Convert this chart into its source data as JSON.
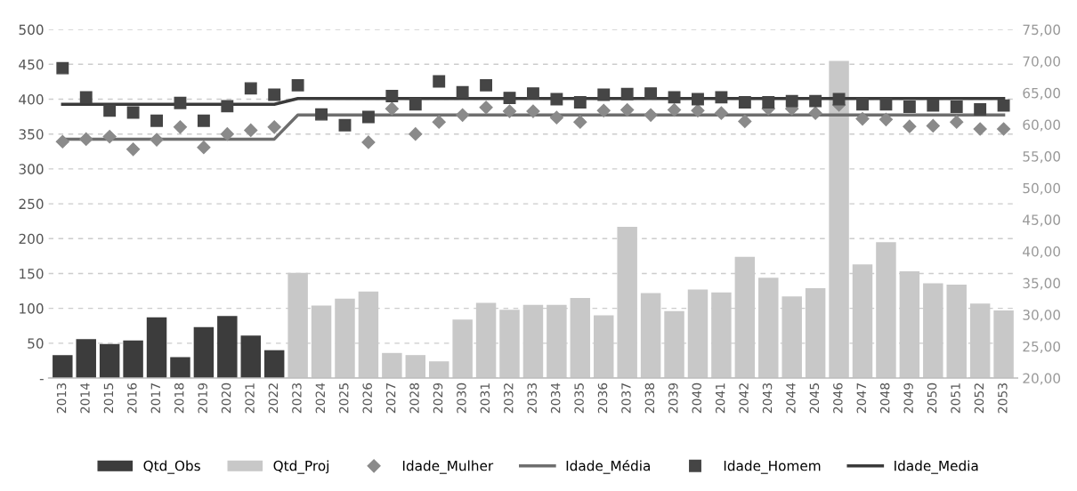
{
  "chart_data": {
    "type": "bar",
    "categories": [
      "2013",
      "2014",
      "2015",
      "2016",
      "2017",
      "2018",
      "2019",
      "2020",
      "2021",
      "2022",
      "2023",
      "2024",
      "2025",
      "2026",
      "2027",
      "2028",
      "2029",
      "2030",
      "2031",
      "2032",
      "2033",
      "2034",
      "2035",
      "2036",
      "2037",
      "2038",
      "2039",
      "2040",
      "2041",
      "2042",
      "2043",
      "2044",
      "2045",
      "2046",
      "2047",
      "2048",
      "2049",
      "2050",
      "2051",
      "2052",
      "2053"
    ],
    "series": [
      {
        "name": "Qtd_Obs",
        "color": "#3c3c3c",
        "values": [
          33,
          56,
          49,
          54,
          87,
          30,
          73,
          89,
          61,
          40,
          null,
          null,
          null,
          null,
          null,
          null,
          null,
          null,
          null,
          null,
          null,
          null,
          null,
          null,
          null,
          null,
          null,
          null,
          null,
          null,
          null,
          null,
          null,
          null,
          null,
          null,
          null,
          null,
          null,
          null,
          null
        ]
      },
      {
        "name": "Qtd_Proj",
        "color": "#c8c8c8",
        "values": [
          null,
          null,
          null,
          null,
          null,
          null,
          null,
          null,
          null,
          null,
          151,
          104,
          114,
          124,
          36,
          33,
          24,
          84,
          108,
          98,
          105,
          105,
          115,
          90,
          217,
          122,
          96,
          127,
          123,
          174,
          144,
          117,
          129,
          455,
          163,
          195,
          153,
          136,
          134,
          107,
          97
        ]
      },
      {
        "name": "Idade_Mulher",
        "type": "scatter",
        "axis": "y2",
        "marker": "diamond",
        "color": "#8a8a8a",
        "values": [
          57.3,
          57.7,
          58.1,
          56.1,
          57.6,
          59.6,
          56.4,
          58.5,
          59.1,
          59.6,
          null,
          null,
          null,
          57.2,
          62.5,
          58.5,
          60.4,
          61.5,
          62.7,
          62.1,
          62.1,
          61.1,
          60.4,
          62.2,
          62.3,
          61.5,
          62.3,
          62.2,
          61.8,
          60.5,
          62.5,
          62.5,
          61.8,
          63.1,
          60.9,
          60.8,
          59.7,
          59.8,
          60.4,
          59.3,
          59.3
        ]
      },
      {
        "name": "Idade_Média",
        "type": "line",
        "axis": "y2",
        "color": "#6e6e6e",
        "values": [
          57.7,
          57.7,
          57.7,
          57.7,
          57.7,
          57.7,
          57.7,
          57.7,
          57.7,
          57.7,
          61.5,
          61.5,
          61.5,
          61.5,
          61.5,
          61.5,
          61.5,
          61.5,
          61.5,
          61.5,
          61.5,
          61.5,
          61.5,
          61.5,
          61.5,
          61.5,
          61.5,
          61.5,
          61.5,
          61.5,
          61.5,
          61.5,
          61.5,
          61.5,
          61.5,
          61.5,
          61.5,
          61.5,
          61.5,
          61.5,
          61.5
        ]
      },
      {
        "name": "Idade_Homem",
        "type": "scatter",
        "axis": "y2",
        "marker": "square",
        "color": "#454545",
        "values": [
          68.9,
          64.3,
          62.2,
          61.9,
          60.6,
          63.4,
          60.6,
          62.9,
          65.7,
          64.7,
          66.2,
          61.6,
          59.9,
          61.2,
          64.5,
          63.2,
          66.8,
          65.1,
          66.2,
          64.2,
          64.9,
          64.0,
          63.5,
          64.7,
          64.8,
          64.9,
          64.3,
          64.0,
          64.3,
          63.5,
          63.5,
          63.7,
          63.7,
          64.0,
          63.2,
          63.2,
          62.8,
          63.0,
          62.8,
          62.4,
          63.0
        ]
      },
      {
        "name": "Idade_Media",
        "type": "line",
        "axis": "y2",
        "color": "#3a3a3a",
        "values": [
          63.2,
          63.2,
          63.2,
          63.2,
          63.2,
          63.2,
          63.2,
          63.2,
          63.2,
          63.2,
          64.1,
          64.1,
          64.1,
          64.1,
          64.1,
          64.1,
          64.1,
          64.1,
          64.1,
          64.1,
          64.1,
          64.1,
          64.1,
          64.1,
          64.1,
          64.1,
          64.1,
          64.1,
          64.1,
          64.1,
          64.1,
          64.1,
          64.1,
          64.1,
          64.1,
          64.1,
          64.1,
          64.1,
          64.1,
          64.1,
          64.1
        ]
      }
    ],
    "ylim": [
      0,
      500
    ],
    "yticks": [
      {
        "value": 0,
        "label": "-"
      },
      50,
      100,
      150,
      200,
      250,
      300,
      350,
      400,
      450,
      500
    ],
    "y2lim": [
      20,
      75
    ],
    "y2ticks": [
      {
        "value": 20,
        "label": "20,00"
      },
      {
        "value": 25,
        "label": "25,00"
      },
      {
        "value": 30,
        "label": "30,00"
      },
      {
        "value": 35,
        "label": "35,00"
      },
      {
        "value": 40,
        "label": "40,00"
      },
      {
        "value": 45,
        "label": "45,00"
      },
      {
        "value": 50,
        "label": "50,00"
      },
      {
        "value": 55,
        "label": "55,00"
      },
      {
        "value": 60,
        "label": "60,00"
      },
      {
        "value": 65,
        "label": "65,00"
      },
      {
        "value": 70,
        "label": "70,00"
      },
      {
        "value": 75,
        "label": "75,00"
      }
    ],
    "grid": "y",
    "legend": "bottom"
  }
}
